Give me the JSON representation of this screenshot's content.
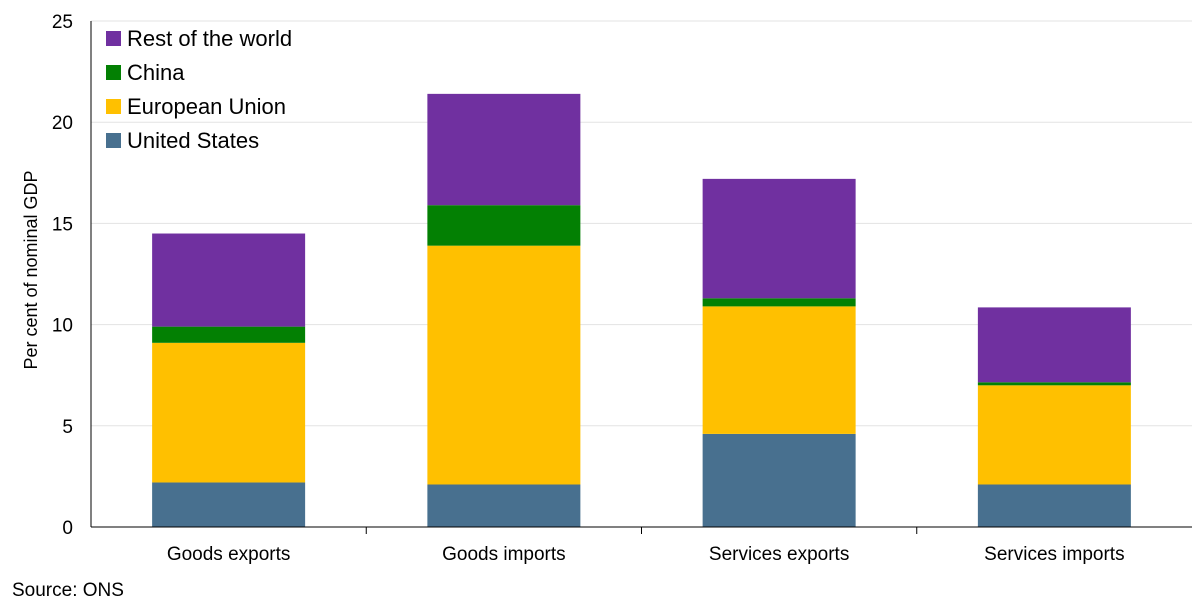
{
  "chart_data": {
    "type": "bar",
    "stacked": true,
    "title": "",
    "xlabel": "",
    "ylabel": "Per cent of nominal GDP",
    "ylim": [
      0,
      25
    ],
    "yticks": [
      0,
      5,
      10,
      15,
      20,
      25
    ],
    "grid": true,
    "legend_position": "top-left",
    "categories": [
      "Goods exports",
      "Goods imports",
      "Services exports",
      "Services imports"
    ],
    "series": [
      {
        "name": "United States",
        "color": "#48708F",
        "values": [
          2.2,
          2.1,
          4.6,
          2.1
        ]
      },
      {
        "name": "European Union",
        "color": "#FFC000",
        "values": [
          6.9,
          11.8,
          6.3,
          4.9
        ]
      },
      {
        "name": "China",
        "color": "#038003",
        "values": [
          0.8,
          2.0,
          0.4,
          0.15
        ]
      },
      {
        "name": "Rest of the world",
        "color": "#7030A0",
        "values": [
          4.6,
          5.5,
          5.9,
          3.7
        ]
      }
    ]
  },
  "source": "Source: ONS"
}
